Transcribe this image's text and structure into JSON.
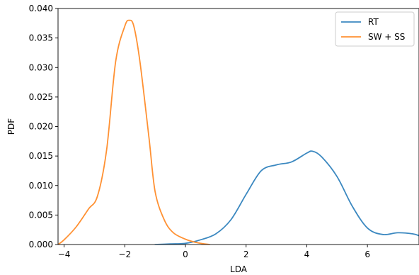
{
  "chart_data": {
    "type": "line",
    "xlabel": "LDA",
    "ylabel": "PDF",
    "xlim": [
      -4.2,
      7.7
    ],
    "ylim": [
      0,
      0.04
    ],
    "x_ticks": [
      -4,
      -2,
      0,
      2,
      4,
      6
    ],
    "x_tick_labels": [
      "−4",
      "−2",
      "0",
      "2",
      "4",
      "6"
    ],
    "y_ticks": [
      0,
      0.005,
      0.01,
      0.015,
      0.02,
      0.025,
      0.03,
      0.035,
      0.04
    ],
    "y_tick_labels": [
      "0.000",
      "0.005",
      "0.010",
      "0.015",
      "0.020",
      "0.025",
      "0.030",
      "0.035",
      "0.040"
    ],
    "grid": false,
    "legend_position": "top-right",
    "series": [
      {
        "name": "RT",
        "color": "#3b88c0",
        "points": [
          [
            -1.0,
            0.0
          ],
          [
            -0.5,
            0.0001
          ],
          [
            0.0,
            0.0002
          ],
          [
            0.5,
            0.0008
          ],
          [
            1.0,
            0.0018
          ],
          [
            1.5,
            0.0042
          ],
          [
            2.0,
            0.0085
          ],
          [
            2.5,
            0.0125
          ],
          [
            3.0,
            0.0135
          ],
          [
            3.5,
            0.014
          ],
          [
            4.0,
            0.0155
          ],
          [
            4.2,
            0.0158
          ],
          [
            4.5,
            0.0148
          ],
          [
            5.0,
            0.0115
          ],
          [
            5.5,
            0.0065
          ],
          [
            6.0,
            0.0028
          ],
          [
            6.5,
            0.0017
          ],
          [
            7.0,
            0.002
          ],
          [
            7.5,
            0.0018
          ],
          [
            7.7,
            0.0015
          ]
        ]
      },
      {
        "name": "SW + SS",
        "color": "#ff9133",
        "points": [
          [
            -4.2,
            0.0
          ],
          [
            -4.0,
            0.0008
          ],
          [
            -3.6,
            0.003
          ],
          [
            -3.2,
            0.006
          ],
          [
            -2.9,
            0.0082
          ],
          [
            -2.6,
            0.016
          ],
          [
            -2.3,
            0.031
          ],
          [
            -2.0,
            0.037
          ],
          [
            -1.85,
            0.038
          ],
          [
            -1.7,
            0.037
          ],
          [
            -1.5,
            0.031
          ],
          [
            -1.2,
            0.018
          ],
          [
            -1.0,
            0.009
          ],
          [
            -0.7,
            0.0042
          ],
          [
            -0.4,
            0.002
          ],
          [
            0.0,
            0.0009
          ],
          [
            0.4,
            0.0003
          ],
          [
            0.8,
            0.0
          ]
        ]
      }
    ]
  }
}
